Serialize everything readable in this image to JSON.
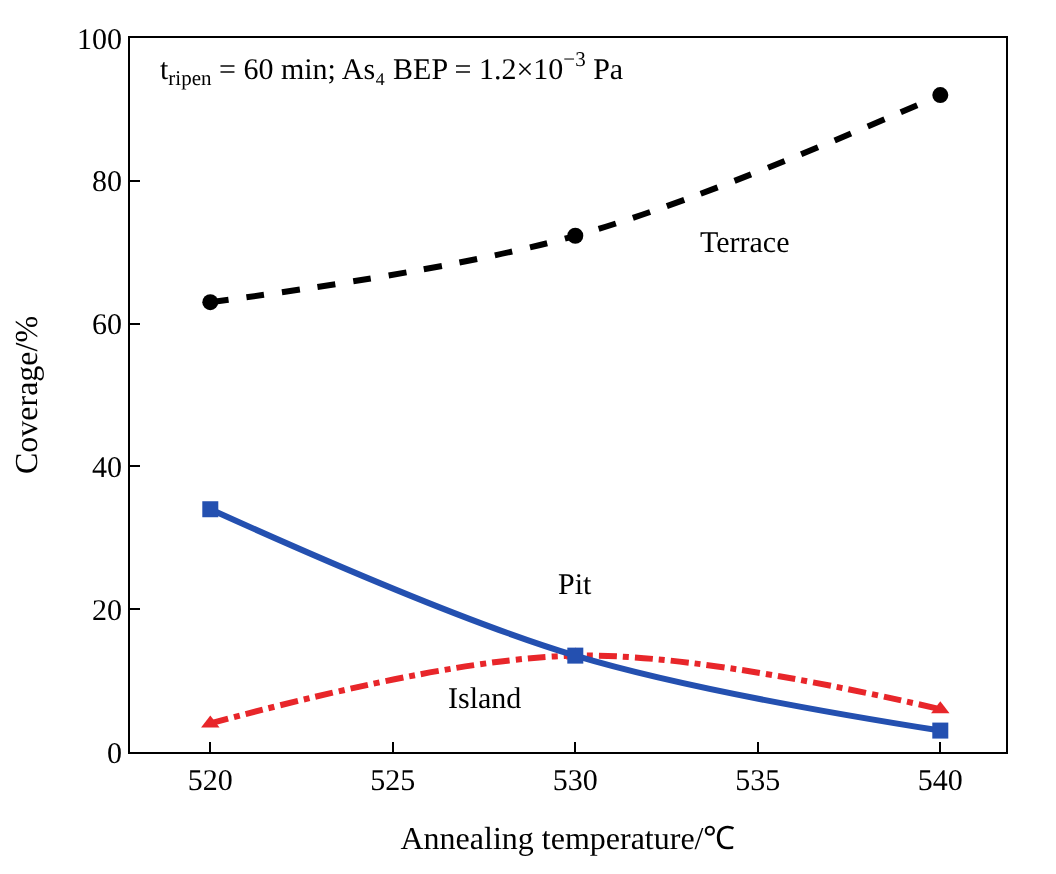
{
  "chart_data": {
    "type": "line",
    "xlabel": "Annealing temperature/℃",
    "ylabel": "Coverage/%",
    "x": [
      520,
      530,
      540
    ],
    "xlim": [
      517.8,
      541.8
    ],
    "xticks": [
      520,
      525,
      530,
      535,
      540
    ],
    "ylim": [
      0,
      100
    ],
    "yticks": [
      0,
      20,
      40,
      60,
      80,
      100
    ],
    "annotations": [
      "t$_{ripen}$ = 60 min; As₄ BEP = 1.2×10$^{−3}$ Pa"
    ],
    "series": [
      {
        "name": "Terrace",
        "color": "#000000",
        "values": [
          63,
          72.3,
          92
        ],
        "marker": "circle",
        "line_style": "dashed"
      },
      {
        "name": "Pit",
        "color": "#2450b0",
        "values": [
          34,
          13.5,
          3
        ],
        "marker": "square",
        "line_style": "solid"
      },
      {
        "name": "Island",
        "color": "#e8262a",
        "values": [
          4,
          13.5,
          6
        ],
        "marker": "triangle",
        "line_style": "dashdot"
      }
    ]
  }
}
